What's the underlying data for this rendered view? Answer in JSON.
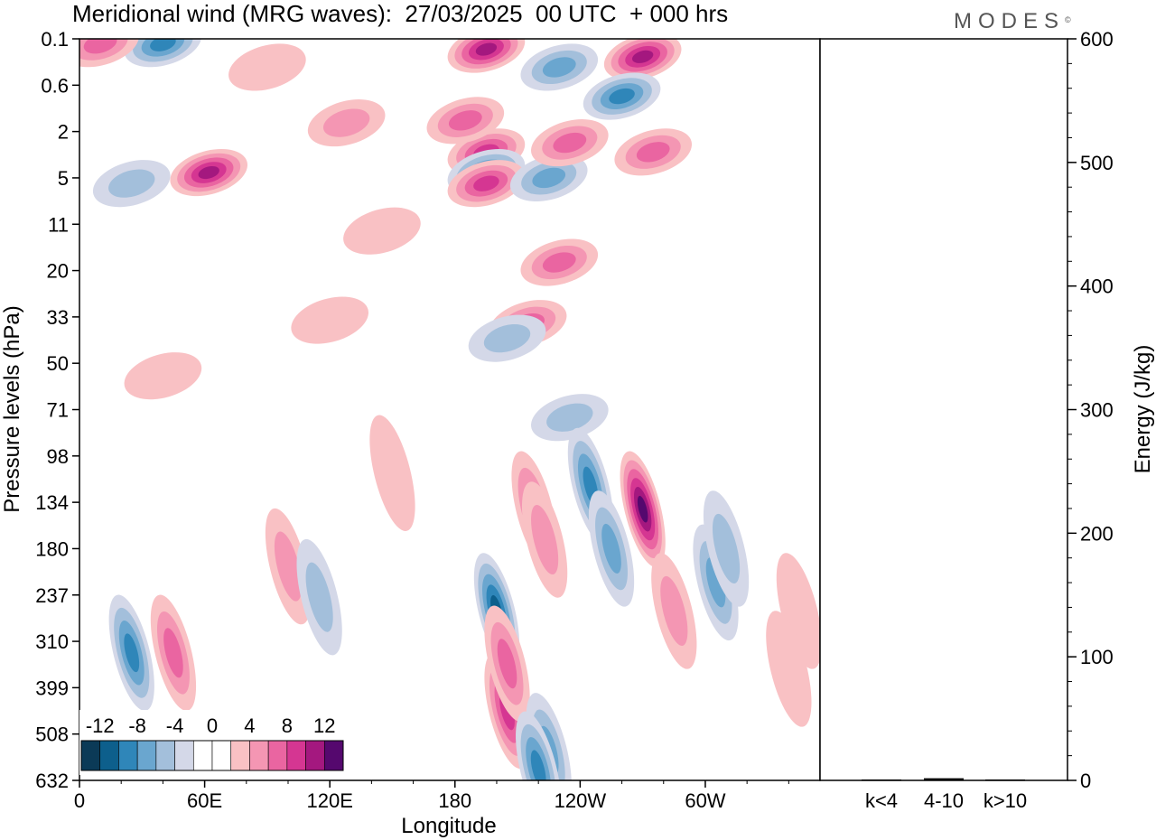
{
  "title": "Meridional wind (MRG waves):  27/03/2025  00 UTC  + 000 hrs",
  "brand": "MODES",
  "brand_mark": "©",
  "chart_data": [
    {
      "type": "heatmap",
      "title": "Meridional wind (MRG waves):  27/03/2025  00 UTC  + 000 hrs",
      "xlabel": "Longitude",
      "ylabel": "Pressure levels (hPa)",
      "x_ticks": [
        "0",
        "60E",
        "120E",
        "180",
        "120W",
        "60W"
      ],
      "y_ticks": [
        "0.1",
        "0.6",
        "2",
        "5",
        "11",
        "20",
        "33",
        "50",
        "71",
        "98",
        "134",
        "180",
        "237",
        "310",
        "399",
        "508",
        "632"
      ],
      "colorbar": {
        "labels": [
          "-12",
          "-8",
          "-4",
          "0",
          "4",
          "8",
          "12"
        ],
        "levels": [
          -14,
          -12,
          -10,
          -8,
          -6,
          -4,
          -2,
          2,
          4,
          6,
          8,
          10,
          12,
          14
        ],
        "colors": [
          "#0b3a57",
          "#0d5f8c",
          "#2f86b9",
          "#6aa6cf",
          "#a3bfdb",
          "#d4d8e8",
          "#ffffff",
          "#ffffff",
          "#f9c1c4",
          "#f496b3",
          "#ea65a1",
          "#d53692",
          "#a4187f",
          "#55086e"
        ]
      },
      "features": [
        {
          "lon": 40,
          "p": 0.12,
          "v": -8
        },
        {
          "lon": 195,
          "p": 0.15,
          "v": 11
        },
        {
          "lon": 270,
          "p": 0.2,
          "v": 10
        },
        {
          "lon": 10,
          "p": 0.12,
          "v": 6
        },
        {
          "lon": 62,
          "p": 4.5,
          "v": 11
        },
        {
          "lon": 25,
          "p": 5.5,
          "v": -5
        },
        {
          "lon": 195,
          "p": 3,
          "v": 8
        },
        {
          "lon": 195,
          "p": 4.5,
          "v": -8
        },
        {
          "lon": 195,
          "p": 5.5,
          "v": 8
        },
        {
          "lon": 225,
          "p": 5,
          "v": -7
        },
        {
          "lon": 235,
          "p": 2.5,
          "v": 7
        },
        {
          "lon": 260,
          "p": 0.8,
          "v": -8
        },
        {
          "lon": 275,
          "p": 3,
          "v": 6
        },
        {
          "lon": 230,
          "p": 0.3,
          "v": -6
        },
        {
          "lon": 128,
          "p": 1.6,
          "v": 4
        },
        {
          "lon": 185,
          "p": 1.5,
          "v": 7
        },
        {
          "lon": 90,
          "p": 0.3,
          "v": 3
        },
        {
          "lon": 145,
          "p": 12,
          "v": 3
        },
        {
          "lon": 230,
          "p": 18,
          "v": 6
        },
        {
          "lon": 215,
          "p": 35,
          "v": 6
        },
        {
          "lon": 205,
          "p": 40,
          "v": -4
        },
        {
          "lon": 120,
          "p": 34,
          "v": 3
        },
        {
          "lon": 235,
          "p": 75,
          "v": -5
        },
        {
          "lon": 40,
          "p": 55,
          "v": 3
        },
        {
          "lon": 200,
          "p": 260,
          "v": -10
        },
        {
          "lon": 205,
          "p": 450,
          "v": 9
        },
        {
          "lon": 205,
          "p": 350,
          "v": 7
        },
        {
          "lon": 218,
          "p": 140,
          "v": 6
        },
        {
          "lon": 223,
          "p": 170,
          "v": 5
        },
        {
          "lon": 245,
          "p": 120,
          "v": -9
        },
        {
          "lon": 255,
          "p": 180,
          "v": -7
        },
        {
          "lon": 270,
          "p": 140,
          "v": 12
        },
        {
          "lon": 225,
          "p": 550,
          "v": -7
        },
        {
          "lon": 220,
          "p": 600,
          "v": -8
        },
        {
          "lon": 25,
          "p": 330,
          "v": -8
        },
        {
          "lon": 45,
          "p": 330,
          "v": 6
        },
        {
          "lon": 100,
          "p": 200,
          "v": 4
        },
        {
          "lon": 115,
          "p": 240,
          "v": -5
        },
        {
          "lon": 285,
          "p": 260,
          "v": 5
        },
        {
          "lon": 305,
          "p": 220,
          "v": -6
        },
        {
          "lon": 310,
          "p": 180,
          "v": -4
        },
        {
          "lon": 345,
          "p": 260,
          "v": 3
        },
        {
          "lon": 150,
          "p": 110,
          "v": 3
        },
        {
          "lon": 340,
          "p": 360,
          "v": 2
        }
      ]
    },
    {
      "type": "bar",
      "categories": [
        "k<4",
        "4-10",
        "k>10"
      ],
      "values": [
        0,
        1,
        0
      ],
      "ylabel": "Energy (J/kg)",
      "ylim": [
        0,
        600
      ],
      "y_ticks": [
        0,
        100,
        200,
        300,
        400,
        500,
        600
      ]
    }
  ]
}
